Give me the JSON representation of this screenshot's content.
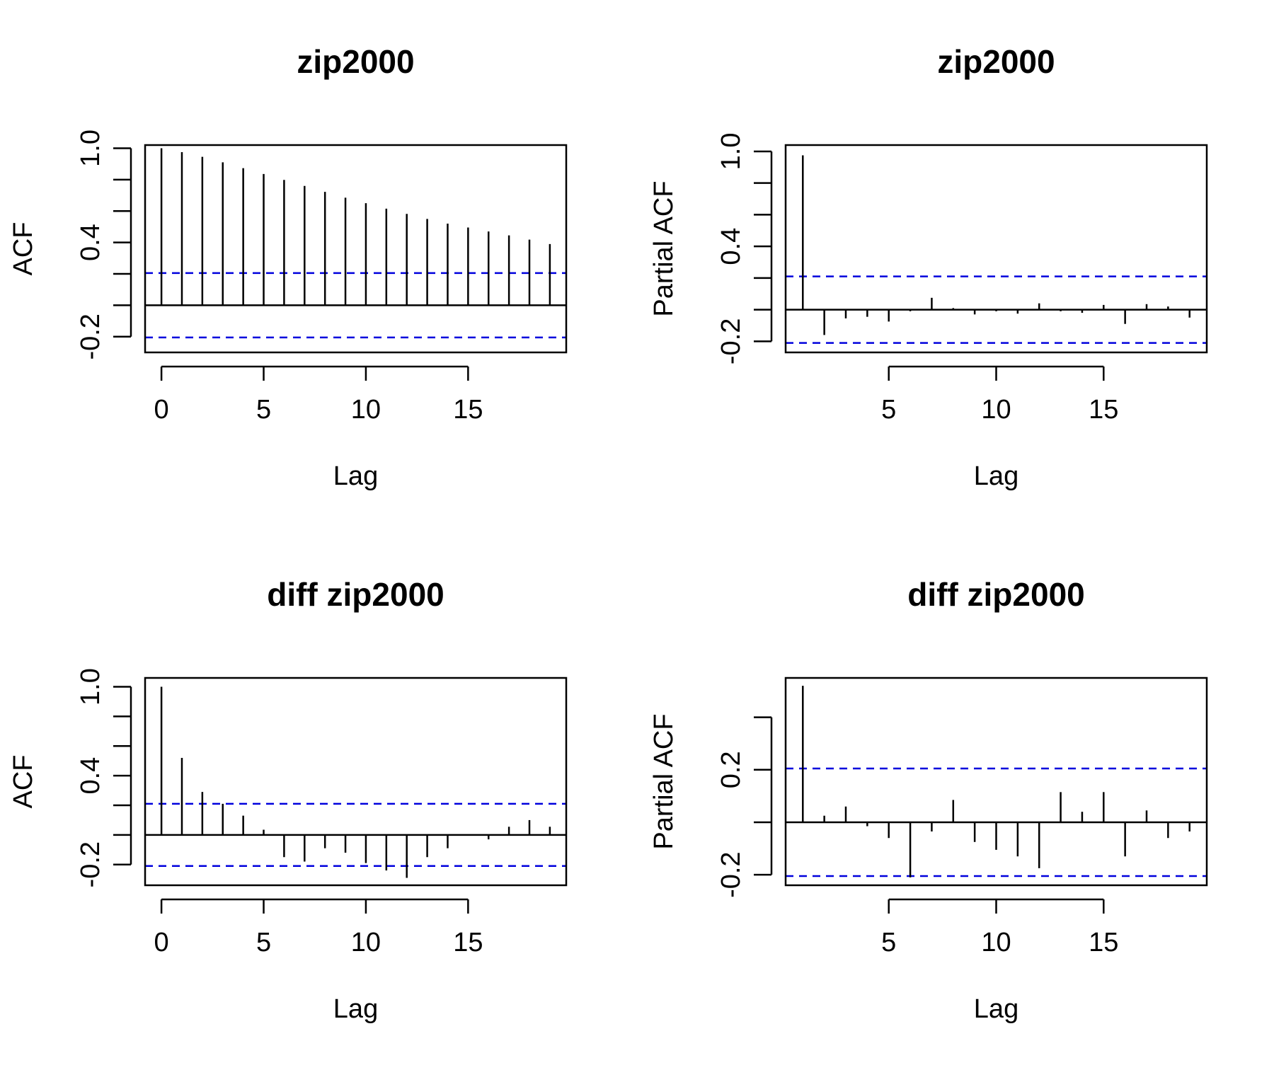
{
  "chart_data": [
    {
      "type": "bar",
      "title": "zip2000",
      "xlabel": "Lag",
      "ylabel": "ACF",
      "xlim": [
        -0.8,
        19.8
      ],
      "ylim": [
        -0.3,
        1.02
      ],
      "xticks": [
        0,
        5,
        10,
        15
      ],
      "yticks": [
        -0.2,
        0.0,
        0.2,
        0.4,
        0.6,
        0.8,
        1.0
      ],
      "yticklabels": [
        "-0.2",
        "",
        "",
        "0.4",
        "",
        "",
        "1.0"
      ],
      "ci": 0.205,
      "lags": [
        0,
        1,
        2,
        3,
        4,
        5,
        6,
        7,
        8,
        9,
        10,
        11,
        12,
        13,
        14,
        15,
        16,
        17,
        18,
        19
      ],
      "values": [
        1.0,
        0.975,
        0.945,
        0.91,
        0.873,
        0.836,
        0.798,
        0.76,
        0.722,
        0.685,
        0.65,
        0.615,
        0.582,
        0.55,
        0.52,
        0.495,
        0.47,
        0.445,
        0.418,
        0.39
      ]
    },
    {
      "type": "bar",
      "title": "zip2000",
      "xlabel": "Lag",
      "ylabel": "Partial ACF",
      "xlim": [
        0.2,
        19.8
      ],
      "ylim": [
        -0.27,
        1.04
      ],
      "xticks": [
        5,
        10,
        15
      ],
      "yticks": [
        -0.2,
        0.0,
        0.2,
        0.4,
        0.6,
        0.8,
        1.0
      ],
      "yticklabels": [
        "-0.2",
        "",
        "",
        "0.4",
        "",
        "",
        "1.0"
      ],
      "ci": 0.21,
      "lags": [
        1,
        2,
        3,
        4,
        5,
        6,
        7,
        8,
        9,
        10,
        11,
        12,
        13,
        14,
        15,
        16,
        17,
        18,
        19
      ],
      "values": [
        0.975,
        -0.16,
        -0.055,
        -0.045,
        -0.075,
        -0.01,
        0.075,
        0.01,
        -0.03,
        -0.01,
        -0.025,
        0.04,
        -0.01,
        -0.02,
        0.03,
        -0.09,
        0.035,
        0.02,
        -0.05
      ]
    },
    {
      "type": "bar",
      "title": "diff zip2000",
      "xlabel": "Lag",
      "ylabel": "ACF",
      "xlim": [
        -0.8,
        19.8
      ],
      "ylim": [
        -0.34,
        1.06
      ],
      "xticks": [
        0,
        5,
        10,
        15
      ],
      "yticks": [
        -0.2,
        0.0,
        0.2,
        0.4,
        0.6,
        0.8,
        1.0
      ],
      "yticklabels": [
        "-0.2",
        "",
        "",
        "0.4",
        "",
        "",
        "1.0"
      ],
      "ci": 0.21,
      "lags": [
        0,
        1,
        2,
        3,
        4,
        5,
        6,
        7,
        8,
        9,
        10,
        11,
        12,
        13,
        14,
        15,
        16,
        17,
        18,
        19
      ],
      "values": [
        1.0,
        0.52,
        0.29,
        0.21,
        0.13,
        0.035,
        -0.15,
        -0.18,
        -0.09,
        -0.12,
        -0.19,
        -0.24,
        -0.29,
        -0.15,
        -0.09,
        0.0,
        -0.03,
        0.055,
        0.1,
        0.055
      ]
    },
    {
      "type": "bar",
      "title": "diff zip2000",
      "xlabel": "Lag",
      "ylabel": "Partial ACF",
      "xlim": [
        0.2,
        19.8
      ],
      "ylim": [
        -0.24,
        0.55
      ],
      "xticks": [
        5,
        10,
        15
      ],
      "yticks": [
        -0.2,
        0.0,
        0.2,
        0.4
      ],
      "yticklabels": [
        "-0.2",
        "",
        "0.2",
        ""
      ],
      "ci": 0.205,
      "lags": [
        1,
        2,
        3,
        4,
        5,
        6,
        7,
        8,
        9,
        10,
        11,
        12,
        13,
        14,
        15,
        16,
        17,
        18,
        19
      ],
      "values": [
        0.52,
        0.025,
        0.06,
        -0.015,
        -0.06,
        -0.21,
        -0.035,
        0.085,
        -0.075,
        -0.105,
        -0.13,
        -0.175,
        0.115,
        0.04,
        0.115,
        -0.13,
        0.045,
        -0.06,
        -0.035
      ]
    }
  ]
}
